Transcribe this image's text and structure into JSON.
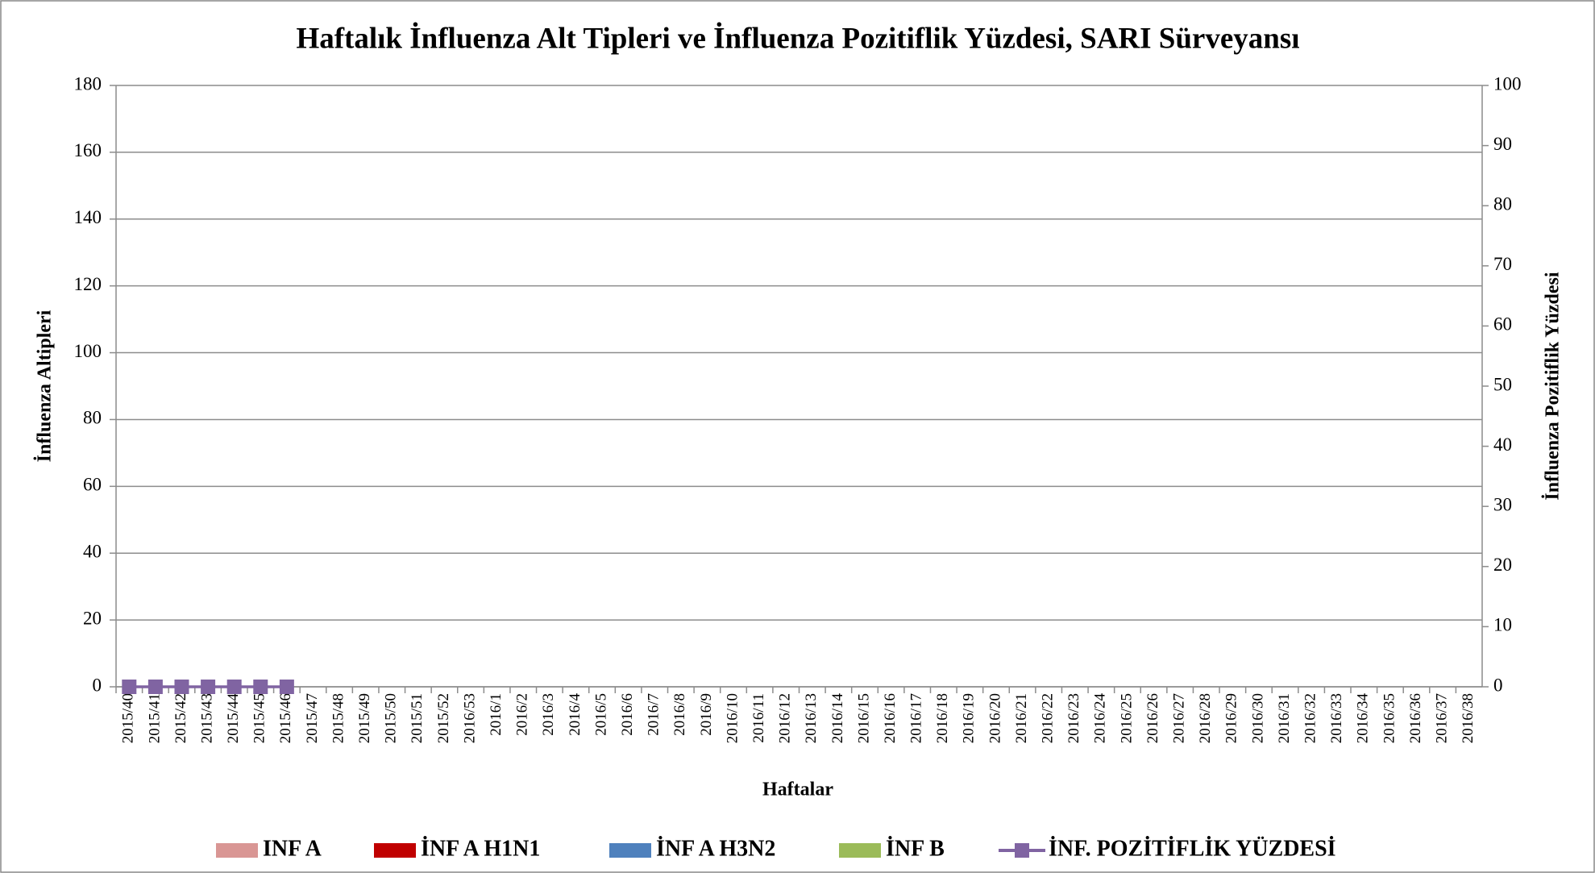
{
  "chart_data": {
    "type": "bar",
    "stacked": true,
    "title": "Haftalık İnfluenza Alt Tipleri ve İnfluenza Pozitiflik Yüzdesi, SARI Sürveyansı",
    "x_label": "Haftalar",
    "y_label": "İnfluenza Altipleri",
    "y2_label": "İnfluenza Pozitiflik Yüzdesi",
    "categories": [
      "2015/40",
      "2015/41",
      "2015/42",
      "2015/43",
      "2015/44",
      "2015/45",
      "2015/46",
      "2015/47",
      "2015/48",
      "2015/49",
      "2015/50",
      "2015/51",
      "2015/52",
      "2016/53",
      "2016/1",
      "2016/2",
      "2016/3",
      "2016/4",
      "2016/5",
      "2016/6",
      "2016/7",
      "2016/8",
      "2016/9",
      "2016/10",
      "2016/11",
      "2016/12",
      "2016/13",
      "2016/14",
      "2016/15",
      "2016/16",
      "2016/17",
      "2016/18",
      "2016/19",
      "2016/20",
      "2016/21",
      "2016/22",
      "2016/23",
      "2016/24",
      "2016/25",
      "2016/26",
      "2016/27",
      "2016/28",
      "2016/29",
      "2016/30",
      "2016/31",
      "2016/32",
      "2016/33",
      "2016/34",
      "2016/35",
      "2016/36",
      "2016/37",
      "2016/38"
    ],
    "series": [
      {
        "name": "INF A",
        "color": "#d99694",
        "values": [
          0,
          0,
          0,
          0,
          0,
          0,
          0,
          null,
          null,
          null,
          null,
          null,
          null,
          null,
          null,
          null,
          null,
          null,
          null,
          null,
          null,
          null,
          null,
          null,
          null,
          null,
          null,
          null,
          null,
          null,
          null,
          null,
          null,
          null,
          null,
          null,
          null,
          null,
          null,
          null,
          null,
          null,
          null,
          null,
          null,
          null,
          null,
          null,
          null,
          null,
          null,
          null
        ]
      },
      {
        "name": "İNF A H1N1",
        "color": "#c00000",
        "values": [
          0,
          0,
          0,
          0,
          0,
          0,
          0,
          null,
          null,
          null,
          null,
          null,
          null,
          null,
          null,
          null,
          null,
          null,
          null,
          null,
          null,
          null,
          null,
          null,
          null,
          null,
          null,
          null,
          null,
          null,
          null,
          null,
          null,
          null,
          null,
          null,
          null,
          null,
          null,
          null,
          null,
          null,
          null,
          null,
          null,
          null,
          null,
          null,
          null,
          null,
          null,
          null
        ]
      },
      {
        "name": "İNF A H3N2",
        "color": "#4f81bd",
        "values": [
          0,
          0,
          0,
          0,
          0,
          0,
          0,
          null,
          null,
          null,
          null,
          null,
          null,
          null,
          null,
          null,
          null,
          null,
          null,
          null,
          null,
          null,
          null,
          null,
          null,
          null,
          null,
          null,
          null,
          null,
          null,
          null,
          null,
          null,
          null,
          null,
          null,
          null,
          null,
          null,
          null,
          null,
          null,
          null,
          null,
          null,
          null,
          null,
          null,
          null,
          null,
          null
        ]
      },
      {
        "name": "İNF B",
        "color": "#9bbb59",
        "values": [
          0,
          0,
          0,
          0,
          0,
          0,
          0,
          null,
          null,
          null,
          null,
          null,
          null,
          null,
          null,
          null,
          null,
          null,
          null,
          null,
          null,
          null,
          null,
          null,
          null,
          null,
          null,
          null,
          null,
          null,
          null,
          null,
          null,
          null,
          null,
          null,
          null,
          null,
          null,
          null,
          null,
          null,
          null,
          null,
          null,
          null,
          null,
          null,
          null,
          null,
          null,
          null
        ]
      },
      {
        "name": "İNF. POZİTİFLİK YÜZDESİ",
        "color": "#8064a2",
        "type": "line",
        "axis": "y2",
        "values": [
          0,
          0,
          0,
          0,
          0,
          0,
          0,
          null,
          null,
          null,
          null,
          null,
          null,
          null,
          null,
          null,
          null,
          null,
          null,
          null,
          null,
          null,
          null,
          null,
          null,
          null,
          null,
          null,
          null,
          null,
          null,
          null,
          null,
          null,
          null,
          null,
          null,
          null,
          null,
          null,
          null,
          null,
          null,
          null,
          null,
          null,
          null,
          null,
          null,
          null,
          null,
          null
        ]
      }
    ],
    "ylim": [
      0,
      180
    ],
    "yticks": [
      0,
      20,
      40,
      60,
      80,
      100,
      120,
      140,
      160,
      180
    ],
    "y2lim": [
      0,
      100
    ],
    "y2ticks": [
      0,
      10,
      20,
      30,
      40,
      50,
      60,
      70,
      80,
      90,
      100
    ],
    "grid": true,
    "legend": "bottom"
  }
}
